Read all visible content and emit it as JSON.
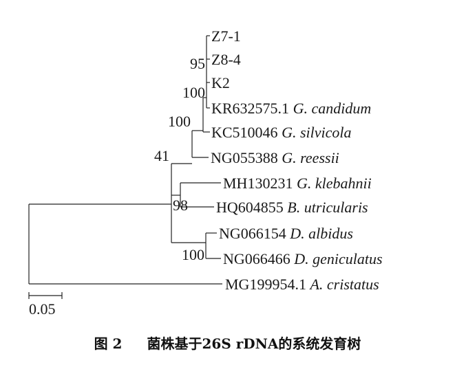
{
  "figure": {
    "caption_number": "图 2",
    "caption_text": "菌株基于26S rDNA的系统发育树"
  },
  "tree": {
    "taxa": [
      {
        "id": "z71",
        "code": "Z7-1",
        "species": ""
      },
      {
        "id": "z84",
        "code": "Z8-4",
        "species": ""
      },
      {
        "id": "k2",
        "code": "K2",
        "species": ""
      },
      {
        "id": "kr632575",
        "code": "KR632575.1",
        "species": "G. candidum"
      },
      {
        "id": "kc510046",
        "code": "KC510046",
        "species": "G. silvicola"
      },
      {
        "id": "ng055388",
        "code": "NG055388",
        "species": "G. reessii"
      },
      {
        "id": "mh130231",
        "code": "MH130231",
        "species": "G. klebahnii"
      },
      {
        "id": "hq604855",
        "code": "HQ604855",
        "species": "B. utricularis"
      },
      {
        "id": "ng066154",
        "code": "NG066154",
        "species": "D. albidus"
      },
      {
        "id": "ng066466",
        "code": "NG066466",
        "species": "D. geniculatus"
      },
      {
        "id": "mg199954",
        "code": "MG199954.1",
        "species": "A. cristatus"
      }
    ],
    "bootstrap": [
      {
        "id": "b95",
        "value": "95"
      },
      {
        "id": "b100a",
        "value": "100"
      },
      {
        "id": "b100b",
        "value": "100"
      },
      {
        "id": "b41",
        "value": "41"
      },
      {
        "id": "b98",
        "value": "98"
      },
      {
        "id": "b100c",
        "value": "100"
      }
    ],
    "scale_bar": {
      "label": "0.05"
    }
  }
}
